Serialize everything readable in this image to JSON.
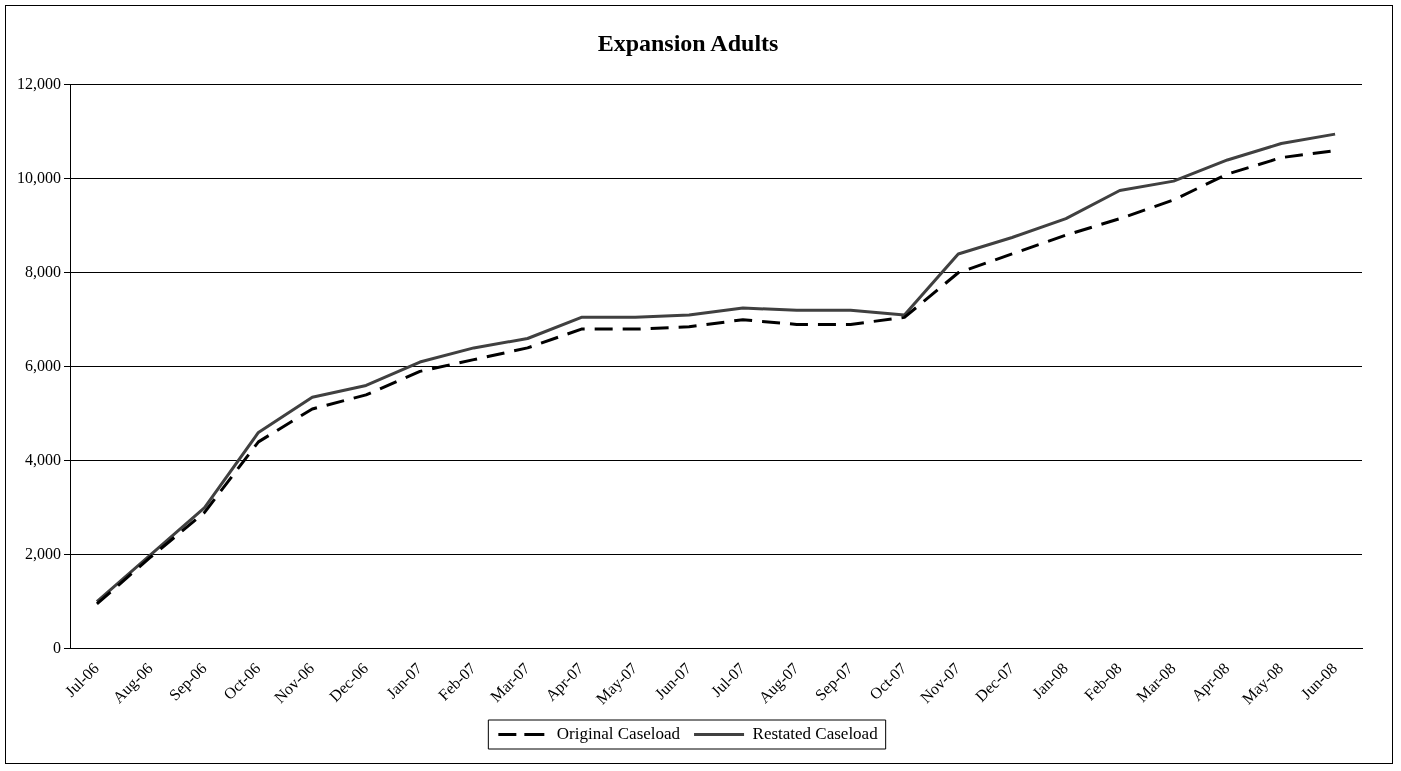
{
  "chart_data": {
    "type": "line",
    "title": "Expansion Adults",
    "categories": [
      "Jul-06",
      "Aug-06",
      "Sep-06",
      "Oct-06",
      "Nov-06",
      "Dec-06",
      "Jan-07",
      "Feb-07",
      "Mar-07",
      "Apr-07",
      "May-07",
      "Jun-07",
      "Jul-07",
      "Aug-07",
      "Sep-07",
      "Oct-07",
      "Nov-07",
      "Dec-07",
      "Jan-08",
      "Feb-08",
      "Mar-08",
      "Apr-08",
      "May-08",
      "Jun-08"
    ],
    "series": [
      {
        "name": "Original Caseload",
        "color": "#000000",
        "line_style": "dashed",
        "values": [
          950,
          1950,
          2900,
          4400,
          5100,
          5400,
          5900,
          6150,
          6400,
          6800,
          6800,
          6850,
          7000,
          6900,
          6900,
          7050,
          8000,
          8400,
          8800,
          9150,
          9550,
          10100,
          10450,
          10600
        ]
      },
      {
        "name": "Restated Caseload",
        "color": "#404040",
        "line_style": "solid",
        "values": [
          1000,
          2000,
          3000,
          4600,
          5350,
          5600,
          6100,
          6400,
          6600,
          7050,
          7050,
          7100,
          7250,
          7200,
          7200,
          7100,
          8400,
          8750,
          9150,
          9750,
          9950,
          10400,
          10750,
          10950
        ]
      }
    ],
    "ylim": [
      0,
      12000
    ],
    "yticks": [
      0,
      {
        "value": 2000,
        "label": "2,000"
      },
      {
        "value": 4000,
        "label": "4,000"
      },
      {
        "value": 6000,
        "label": "6,000"
      },
      {
        "value": 8000,
        "label": "8,000"
      },
      {
        "value": 10000,
        "label": "10,000"
      },
      {
        "value": 12000,
        "label": "12,000"
      }
    ],
    "grid": "y",
    "legend": "bottom",
    "marker": "none"
  }
}
